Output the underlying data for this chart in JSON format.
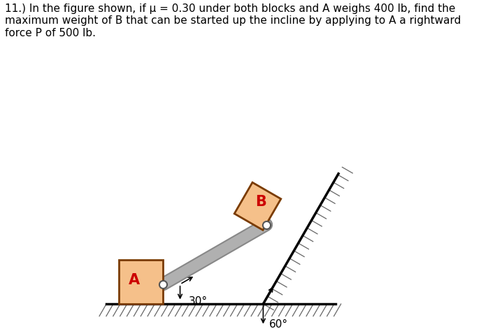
{
  "title_text": "11.) In the figure shown, if μ = 0.30 under both blocks and A weighs 400 lb, find the\nmaximum weight of B that can be started up the incline by applying to A a rightward\nforce P of 500 lb.",
  "title_fontsize": 11,
  "fig_width": 7.08,
  "fig_height": 4.71,
  "bg_color": "#ffffff",
  "block_A_face": "#f5c08a",
  "block_A_edge": "#7a3b00",
  "block_A_label": "A",
  "block_A_label_color": "#cc0000",
  "block_B_face": "#f5c08a",
  "block_B_edge": "#7a3b00",
  "block_B_label": "B",
  "block_B_label_color": "#cc0000",
  "rod_color": "#b0b0b0",
  "rod_edge_color": "#888888",
  "angle_30_label": "30°",
  "angle_60_label": "60°",
  "ground_color": "#000000",
  "incline_color": "#000000",
  "hatch_color": "#666666"
}
